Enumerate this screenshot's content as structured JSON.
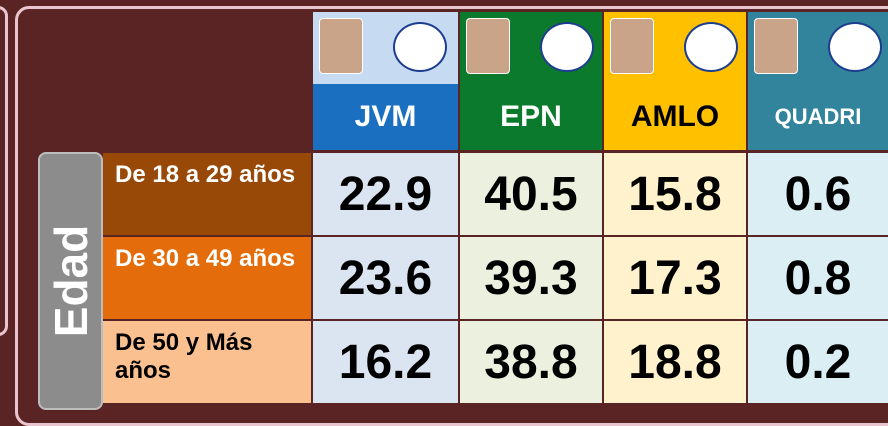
{
  "table": {
    "group_label": "Edad",
    "columns": [
      "JVM",
      "EPN",
      "AMLO",
      "QUADRI"
    ],
    "rows": [
      {
        "label": "De 18 a 29 años",
        "values": [
          22.9,
          40.5,
          15.8,
          0.6
        ]
      },
      {
        "label": "De 30 a 49 años",
        "values": [
          23.6,
          39.3,
          17.3,
          0.8
        ]
      },
      {
        "label": "De 50 y Más años",
        "values": [
          16.2,
          38.8,
          18.8,
          0.2
        ]
      }
    ]
  }
}
